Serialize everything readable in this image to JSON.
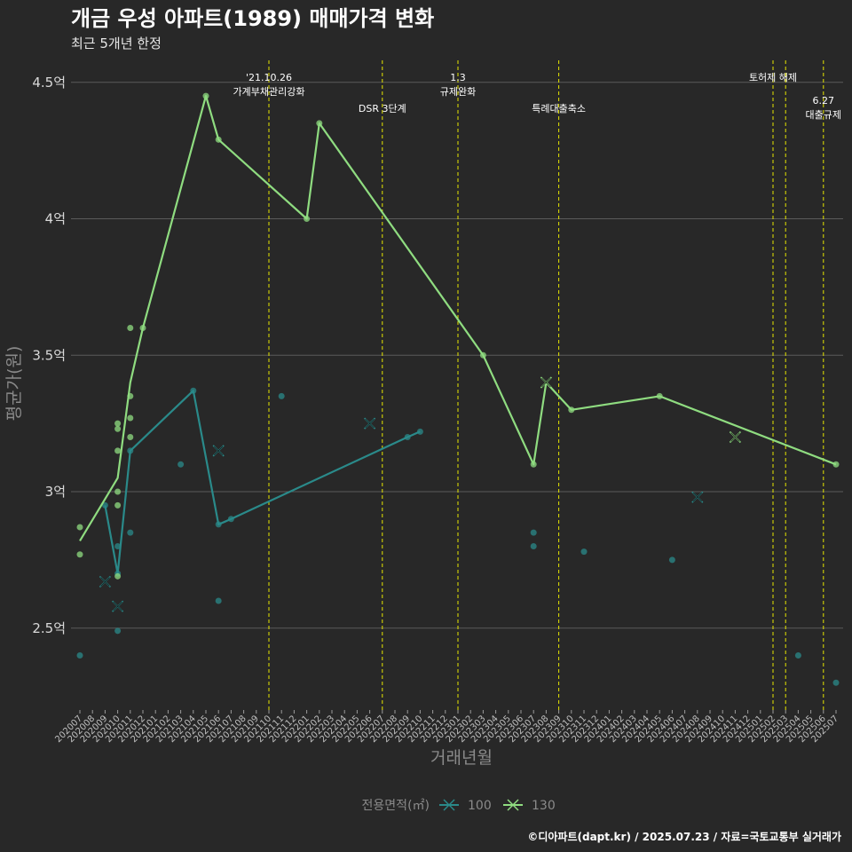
{
  "chart_data": {
    "type": "line",
    "title": "개금 우성 아파트(1989) 매매가격 변화",
    "subtitle": "최근 5개년 한정",
    "xlabel": "거래년월",
    "ylabel": "평균가(원)",
    "caption": "©디아파트(dapt.kr) / 2025.07.23 / 자료=국토교통부 실거래가",
    "ylim": [
      2.2,
      4.6
    ],
    "y_ticks": [
      {
        "value": 2.5,
        "label": "2.5억"
      },
      {
        "value": 3.0,
        "label": "3억"
      },
      {
        "value": 3.5,
        "label": "3.5억"
      },
      {
        "value": 4.0,
        "label": "4억"
      },
      {
        "value": 4.5,
        "label": "4.5억"
      }
    ],
    "categories": [
      "202007",
      "202008",
      "202009",
      "202010",
      "202011",
      "202012",
      "202101",
      "202102",
      "202103",
      "202104",
      "202105",
      "202106",
      "202107",
      "202108",
      "202109",
      "202110",
      "202111",
      "202112",
      "202201",
      "202202",
      "202203",
      "202204",
      "202205",
      "202206",
      "202207",
      "202208",
      "202209",
      "202210",
      "202211",
      "202212",
      "202301",
      "202302",
      "202303",
      "202304",
      "202305",
      "202306",
      "202307",
      "202308",
      "202309",
      "202310",
      "202311",
      "202312",
      "202401",
      "202402",
      "202403",
      "202404",
      "202405",
      "202406",
      "202407",
      "202408",
      "202409",
      "202410",
      "202411",
      "202412",
      "202501",
      "202502",
      "202503",
      "202504",
      "202505",
      "202506",
      "202507"
    ],
    "legend": {
      "title": "전용면적(㎡)",
      "position": "bottom"
    },
    "series": [
      {
        "name": "100",
        "color": "#2a8a8a",
        "line": [
          [
            "202009",
            2.95
          ],
          [
            "202010",
            2.7
          ],
          [
            "202011",
            3.15
          ],
          [
            "202104",
            3.37
          ],
          [
            "202106",
            2.88
          ],
          [
            "202107",
            2.9
          ],
          [
            "202209",
            3.2
          ],
          [
            "202210",
            3.22
          ]
        ],
        "points": [
          [
            "202007",
            2.4
          ],
          [
            "202009",
            2.95
          ],
          [
            "202010",
            2.7
          ],
          [
            "202010",
            2.49
          ],
          [
            "202010",
            2.8
          ],
          [
            "202011",
            3.15
          ],
          [
            "202011",
            2.85
          ],
          [
            "202103",
            3.1
          ],
          [
            "202104",
            3.37
          ],
          [
            "202106",
            2.6
          ],
          [
            "202106",
            2.88
          ],
          [
            "202107",
            2.9
          ],
          [
            "202111",
            3.35
          ],
          [
            "202209",
            3.2
          ],
          [
            "202210",
            3.22
          ],
          [
            "202307",
            2.85
          ],
          [
            "202307",
            2.8
          ],
          [
            "202311",
            2.78
          ],
          [
            "202406",
            2.75
          ],
          [
            "202504",
            2.4
          ],
          [
            "202507",
            2.3
          ]
        ],
        "crosses": [
          [
            "202009",
            2.67
          ],
          [
            "202010",
            2.58
          ],
          [
            "202106",
            3.15
          ],
          [
            "202206",
            3.25
          ],
          [
            "202408",
            2.98
          ]
        ]
      },
      {
        "name": "130",
        "color": "#8fdc80",
        "line": [
          [
            "202007",
            2.82
          ],
          [
            "202010",
            3.05
          ],
          [
            "202011",
            3.4
          ],
          [
            "202012",
            3.6
          ],
          [
            "202105",
            4.45
          ],
          [
            "202106",
            4.29
          ],
          [
            "202201",
            4.0
          ],
          [
            "202202",
            4.35
          ],
          [
            "202303",
            3.5
          ],
          [
            "202307",
            3.1
          ],
          [
            "202308",
            3.4
          ],
          [
            "202310",
            3.3
          ],
          [
            "202405",
            3.35
          ],
          [
            "202507",
            3.1
          ]
        ],
        "points": [
          [
            "202007",
            2.87
          ],
          [
            "202007",
            2.77
          ],
          [
            "202010",
            3.25
          ],
          [
            "202010",
            3.23
          ],
          [
            "202010",
            3.15
          ],
          [
            "202010",
            3.0
          ],
          [
            "202010",
            2.95
          ],
          [
            "202010",
            2.69
          ],
          [
            "202011",
            3.35
          ],
          [
            "202011",
            3.27
          ],
          [
            "202011",
            3.2
          ],
          [
            "202011",
            3.6
          ],
          [
            "202012",
            3.6
          ],
          [
            "202105",
            4.45
          ],
          [
            "202106",
            4.29
          ],
          [
            "202201",
            4.0
          ],
          [
            "202202",
            4.35
          ],
          [
            "202303",
            3.5
          ],
          [
            "202307",
            3.1
          ],
          [
            "202310",
            3.3
          ],
          [
            "202405",
            3.35
          ],
          [
            "202507",
            3.1
          ]
        ],
        "crosses": [
          [
            "202308",
            3.4
          ],
          [
            "202411",
            3.2
          ]
        ]
      }
    ],
    "events": [
      {
        "x": "202110",
        "lines": [
          "'21.10.26",
          "가계부채관리강화"
        ],
        "row": 0
      },
      {
        "x": "202207",
        "lines": [
          "DSR 3단계"
        ],
        "row": 1
      },
      {
        "x": "202301",
        "lines": [
          "1.3",
          "규제완화"
        ],
        "row": 0
      },
      {
        "x": "202309",
        "lines": [
          "특례대출축소"
        ],
        "row": 1
      },
      {
        "x": "202502",
        "lines": [
          "토허제 해제"
        ],
        "row": 0
      },
      {
        "x": "202503",
        "lines": [],
        "row": 0
      },
      {
        "x": "202506",
        "lines": [
          "6.27",
          "대출규제"
        ],
        "row": 2
      }
    ]
  }
}
